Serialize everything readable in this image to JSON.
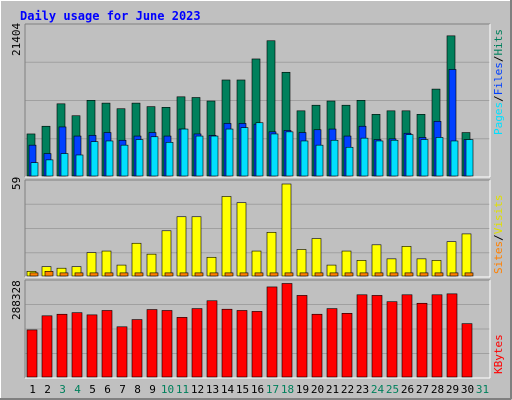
{
  "title": "Daily usage for June 2023",
  "colors": {
    "hits": "#00805c",
    "files": "#0040ff",
    "pages": "#00e0ff",
    "visits": "#ffff00",
    "sites": "#ff8000",
    "kbytes": "#ff0000",
    "weekend_label": "#00805c",
    "weekday_label": "#000000"
  },
  "chart_data": [
    {
      "type": "bar",
      "panel": "hits-files-pages",
      "ymax_label": "21404",
      "ylim": [
        0,
        21404
      ],
      "legend": {
        "pages": "Pages",
        "sep1": "/",
        "files": "Files",
        "sep2": "/",
        "hits": "Hits"
      },
      "categories": [
        "1",
        "2",
        "3",
        "4",
        "5",
        "6",
        "7",
        "8",
        "9",
        "10",
        "11",
        "12",
        "13",
        "14",
        "15",
        "16",
        "17",
        "18",
        "19",
        "20",
        "21",
        "22",
        "23",
        "24",
        "25",
        "26",
        "27",
        "28",
        "29",
        "30",
        "31"
      ],
      "weekend": [
        false,
        false,
        true,
        true,
        false,
        false,
        false,
        false,
        false,
        true,
        true,
        false,
        false,
        false,
        false,
        false,
        true,
        true,
        false,
        false,
        false,
        false,
        false,
        true,
        true,
        false,
        false,
        false,
        false,
        false,
        true
      ],
      "series": [
        {
          "name": "Hits",
          "values": [
            6000,
            7100,
            10300,
            8600,
            10800,
            10400,
            9600,
            10400,
            9900,
            9800,
            11300,
            11200,
            10700,
            13700,
            13700,
            16700,
            19300,
            14800,
            9300,
            10100,
            10700,
            10100,
            10800,
            8800,
            9300,
            9300,
            8800,
            12400,
            20000,
            6200,
            0
          ]
        },
        {
          "name": "Files",
          "values": [
            4400,
            3200,
            7000,
            5700,
            5800,
            6200,
            5100,
            5700,
            6200,
            5700,
            6700,
            6000,
            5800,
            7500,
            7500,
            7400,
            6300,
            6500,
            6200,
            6600,
            6700,
            5700,
            7100,
            5200,
            5300,
            6100,
            5500,
            7800,
            15200,
            5200,
            0
          ]
        },
        {
          "name": "Pages",
          "values": [
            1900,
            2300,
            3200,
            3000,
            4900,
            5000,
            4400,
            5200,
            5600,
            4800,
            6700,
            5700,
            5700,
            6700,
            6900,
            7600,
            6000,
            6300,
            5000,
            4400,
            5100,
            4100,
            5400,
            5000,
            5100,
            5900,
            5200,
            5500,
            5000,
            5200,
            0
          ]
        }
      ]
    },
    {
      "type": "bar",
      "panel": "sites-visits",
      "ymax_label": "59",
      "ylim": [
        0,
        59
      ],
      "legend": {
        "sites": "Sites",
        "sep": "/",
        "visits": "Visits"
      },
      "categories": [
        "1",
        "2",
        "3",
        "4",
        "5",
        "6",
        "7",
        "8",
        "9",
        "10",
        "11",
        "12",
        "13",
        "14",
        "15",
        "16",
        "17",
        "18",
        "19",
        "20",
        "21",
        "22",
        "23",
        "24",
        "25",
        "26",
        "27",
        "28",
        "29",
        "30",
        "31"
      ],
      "series": [
        {
          "name": "Visits",
          "values": [
            3,
            6,
            5,
            6,
            15,
            16,
            7,
            21,
            14,
            29,
            38,
            38,
            12,
            51,
            47,
            16,
            28,
            60,
            17,
            24,
            7,
            16,
            10,
            20,
            11,
            19,
            11,
            10,
            22,
            27,
            0
          ]
        },
        {
          "name": "Sites",
          "values": [
            2,
            3,
            2,
            2,
            2,
            2,
            2,
            2,
            2,
            2,
            2,
            2,
            2,
            2,
            2,
            2,
            2,
            2,
            2,
            2,
            2,
            2,
            2,
            2,
            2,
            2,
            2,
            2,
            2,
            2,
            0
          ]
        }
      ]
    },
    {
      "type": "bar",
      "panel": "kbytes",
      "ymax_label": "288328",
      "ylim": [
        0,
        288328
      ],
      "legend": {
        "kbytes": "KBytes"
      },
      "categories": [
        "1",
        "2",
        "3",
        "4",
        "5",
        "6",
        "7",
        "8",
        "9",
        "10",
        "11",
        "12",
        "13",
        "14",
        "15",
        "16",
        "17",
        "18",
        "19",
        "20",
        "21",
        "22",
        "23",
        "24",
        "25",
        "26",
        "27",
        "28",
        "29",
        "30",
        "31"
      ],
      "series": [
        {
          "name": "KBytes",
          "values": [
            150000,
            195000,
            200000,
            205000,
            198000,
            212000,
            160000,
            183000,
            215000,
            212000,
            190000,
            218000,
            243000,
            216000,
            212000,
            209000,
            287000,
            298000,
            260000,
            200000,
            218000,
            203000,
            262000,
            260000,
            240000,
            262000,
            235000,
            262000,
            265000,
            170000,
            0
          ]
        }
      ]
    }
  ]
}
